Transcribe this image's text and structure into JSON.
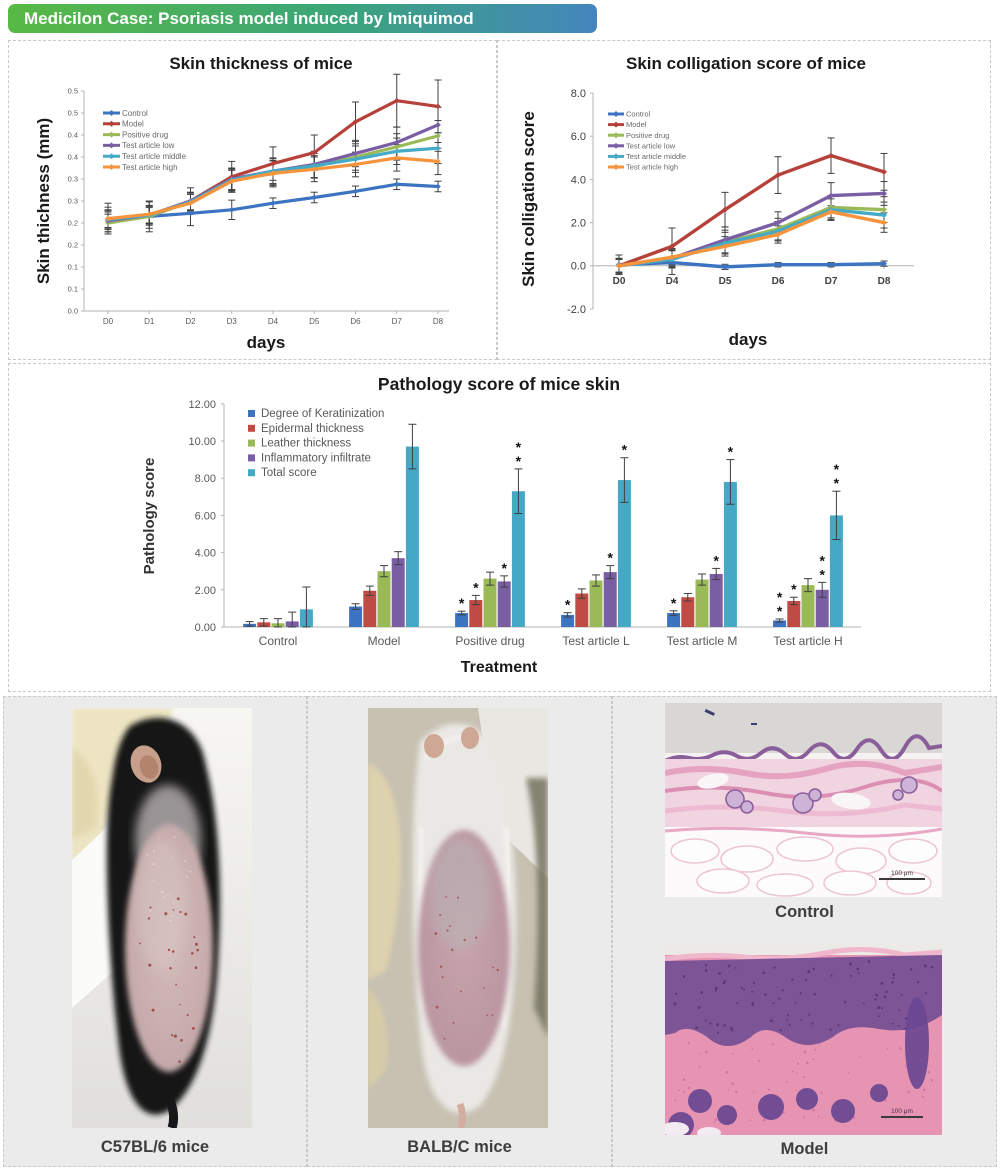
{
  "banner": {
    "text": "Medicilon Case: Psoriasis model induced by Imiquimod",
    "gradient_left": "#58b944",
    "gradient_right": "#4486bd"
  },
  "chart_data": [
    {
      "type": "line",
      "title": "Skin thickness of mice",
      "xlabel": "days",
      "ylabel": "Skin thichness (mm)",
      "x": [
        "D0",
        "D1",
        "D2",
        "D3",
        "D4",
        "D5",
        "D6",
        "D7",
        "D8"
      ],
      "ylim": [
        0,
        0.5
      ],
      "ytick_labels": [
        "0.5",
        "0.5",
        "0.4",
        "0.4",
        "0.3",
        "0.3",
        "0.2",
        "0.2",
        "0.1",
        "0.1",
        "0.0"
      ],
      "grid": false,
      "legend_position": "top-left-inside",
      "series": [
        {
          "name": "Control",
          "color": "#3c74c1",
          "values": [
            0.21,
            0.215,
            0.222,
            0.23,
            0.245,
            0.258,
            0.272,
            0.288,
            0.283
          ],
          "err": [
            0.035,
            0.035,
            0.028,
            0.022,
            0.012,
            0.012,
            0.012,
            0.012,
            0.012
          ]
        },
        {
          "name": "Model",
          "color": "#b6413a",
          "values": [
            0.208,
            0.218,
            0.25,
            0.305,
            0.335,
            0.36,
            0.43,
            0.478,
            0.465
          ],
          "err": [
            0.028,
            0.03,
            0.03,
            0.035,
            0.038,
            0.04,
            0.045,
            0.06,
            0.06
          ]
        },
        {
          "name": "Positive drug",
          "color": "#9aba58",
          "values": [
            0.2,
            0.215,
            0.248,
            0.298,
            0.312,
            0.328,
            0.35,
            0.373,
            0.398
          ],
          "err": [
            0.02,
            0.02,
            0.02,
            0.022,
            0.03,
            0.025,
            0.03,
            0.03,
            0.035
          ]
        },
        {
          "name": "Test article low",
          "color": "#7a5ea4",
          "values": [
            0.205,
            0.218,
            0.25,
            0.3,
            0.318,
            0.333,
            0.358,
            0.383,
            0.423
          ],
          "err": [
            0.02,
            0.02,
            0.02,
            0.025,
            0.03,
            0.03,
            0.03,
            0.035,
            0.04
          ]
        },
        {
          "name": "Test article middle",
          "color": "#45aac6",
          "values": [
            0.208,
            0.218,
            0.248,
            0.298,
            0.318,
            0.33,
            0.345,
            0.363,
            0.37
          ],
          "err": [
            0.02,
            0.02,
            0.02,
            0.025,
            0.028,
            0.028,
            0.03,
            0.03,
            0.035
          ]
        },
        {
          "name": "Test article high",
          "color": "#f6943d",
          "values": [
            0.21,
            0.22,
            0.245,
            0.295,
            0.313,
            0.322,
            0.333,
            0.348,
            0.34
          ],
          "err": [
            0.02,
            0.02,
            0.02,
            0.025,
            0.028,
            0.028,
            0.028,
            0.03,
            0.03
          ]
        }
      ]
    },
    {
      "type": "line",
      "title": "Skin colligation score of mice",
      "xlabel": "days",
      "ylabel": "Skin colligation score",
      "x": [
        "D0",
        "D4",
        "D5",
        "D6",
        "D7",
        "D8"
      ],
      "ylim": [
        -2,
        8
      ],
      "ytick_labels": [
        "8.0",
        "6.0",
        "4.0",
        "2.0",
        "0.0",
        "-2.0"
      ],
      "grid": false,
      "legend_position": "top-left-inside",
      "series": [
        {
          "name": "Control",
          "color": "#3c74c1",
          "values": [
            0.05,
            0.15,
            -0.05,
            0.05,
            0.05,
            0.1
          ],
          "err": [
            0.45,
            0.55,
            0.12,
            0.1,
            0.1,
            0.12
          ]
        },
        {
          "name": "Model",
          "color": "#b6413a",
          "values": [
            0,
            0.9,
            2.6,
            4.2,
            5.1,
            4.35
          ],
          "err": [
            0.35,
            0.85,
            0.8,
            0.85,
            0.82,
            0.85
          ]
        },
        {
          "name": "Positive drug",
          "color": "#9aba58",
          "values": [
            0,
            0.32,
            1.1,
            1.7,
            2.7,
            2.6
          ],
          "err": [
            0.3,
            0.4,
            0.55,
            0.5,
            0.55,
            0.6
          ]
        },
        {
          "name": "Test article low",
          "color": "#7a5ea4",
          "values": [
            0,
            0.35,
            1.2,
            2.0,
            3.25,
            3.35
          ],
          "err": [
            0.3,
            0.4,
            0.6,
            0.5,
            0.6,
            0.55
          ]
        },
        {
          "name": "Test article middle",
          "color": "#45aac6",
          "values": [
            0,
            0.3,
            1.05,
            1.6,
            2.6,
            2.35
          ],
          "err": [
            0.3,
            0.4,
            0.5,
            0.45,
            0.5,
            0.6
          ]
        },
        {
          "name": "Test article high",
          "color": "#f6943d",
          "values": [
            0,
            0.4,
            0.9,
            1.45,
            2.5,
            2.0
          ],
          "err": [
            0.3,
            0.4,
            0.45,
            0.4,
            0.28,
            0.45
          ]
        }
      ]
    },
    {
      "type": "bar",
      "title": "Pathology score of mice skin",
      "xlabel": "Treatment",
      "ylabel": "Pathology score",
      "categories": [
        "Control",
        "Model",
        "Positive drug",
        "Test article L",
        "Test article M",
        "Test article H"
      ],
      "ylim": [
        0,
        12
      ],
      "ytick_labels": [
        "12.00",
        "10.00",
        "8.00",
        "6.00",
        "4.00",
        "2.00",
        "0.00"
      ],
      "grid": false,
      "legend_position": "top-left-inside",
      "series": [
        {
          "name": "Degree of Keratinization",
          "color": "#3c74c1",
          "values": [
            0.17,
            1.1,
            0.75,
            0.65,
            0.75,
            0.35
          ],
          "err": [
            0.12,
            0.15,
            0.1,
            0.12,
            0.12,
            0.08
          ]
        },
        {
          "name": "Epidermal thickness",
          "color": "#bf4b45",
          "values": [
            0.25,
            1.95,
            1.45,
            1.8,
            1.6,
            1.4
          ],
          "err": [
            0.2,
            0.25,
            0.25,
            0.25,
            0.2,
            0.2
          ]
        },
        {
          "name": "Leather thickness",
          "color": "#9aba58",
          "values": [
            0.2,
            3.0,
            2.6,
            2.5,
            2.55,
            2.25
          ],
          "err": [
            0.25,
            0.3,
            0.35,
            0.3,
            0.3,
            0.35
          ]
        },
        {
          "name": "Inflammatory infiltrate",
          "color": "#7a5ea4",
          "values": [
            0.3,
            3.7,
            2.45,
            2.95,
            2.85,
            2.0
          ],
          "err": [
            0.5,
            0.35,
            0.3,
            0.35,
            0.3,
            0.4
          ]
        },
        {
          "name": "Total score",
          "color": "#45a9c6",
          "values": [
            0.95,
            9.7,
            7.3,
            7.9,
            7.8,
            6.0
          ],
          "err": [
            1.2,
            1.2,
            1.2,
            1.2,
            1.2,
            1.3
          ]
        }
      ],
      "significance": [
        [],
        [],
        [
          {
            "series": 0,
            "stars": 1
          },
          {
            "series": 1,
            "stars": 1
          },
          {
            "series": 3,
            "stars": 1
          },
          {
            "series": 4,
            "stars": 2
          }
        ],
        [
          {
            "series": 0,
            "stars": 1
          },
          {
            "series": 3,
            "stars": 1
          },
          {
            "series": 4,
            "stars": 1
          }
        ],
        [
          {
            "series": 0,
            "stars": 1
          },
          {
            "series": 3,
            "stars": 1
          },
          {
            "series": 4,
            "stars": 1
          }
        ],
        [
          {
            "series": 0,
            "stars": 2
          },
          {
            "series": 1,
            "stars": 1
          },
          {
            "series": 3,
            "stars": 2
          },
          {
            "series": 4,
            "stars": 2
          }
        ]
      ]
    }
  ],
  "photos": {
    "c57": {
      "caption": "C57BL/6 mice"
    },
    "balb": {
      "caption": "BALB/C mice"
    },
    "control": {
      "caption": "Control",
      "scale_label": "100 μm"
    },
    "model": {
      "caption": "Model",
      "scale_label": "100 μm"
    }
  }
}
